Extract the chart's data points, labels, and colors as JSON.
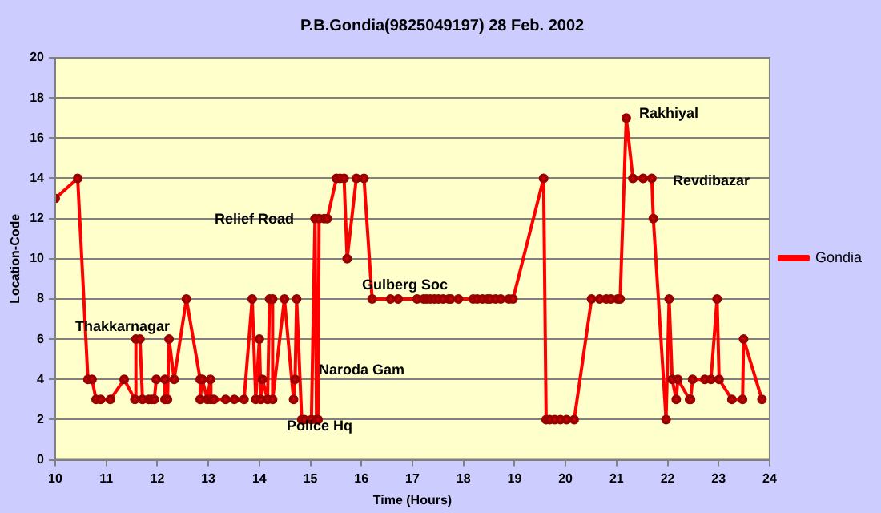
{
  "chart_data": {
    "type": "line",
    "title": "P.B.Gondia(9825049197) 28 Feb. 2002",
    "xlabel": "Time (Hours)",
    "ylabel": "Location-Code",
    "series": [
      {
        "name": "Gondia",
        "color": "#ff0000",
        "x": [
          10.0,
          10.44,
          10.64,
          10.72,
          10.8,
          10.89,
          11.08,
          11.35,
          11.56,
          11.58,
          11.66,
          11.71,
          11.83,
          11.89,
          11.94,
          11.98,
          12.15,
          12.15,
          12.2,
          12.23,
          12.33,
          12.57,
          12.84,
          12.84,
          12.88,
          12.98,
          13.04,
          13.05,
          13.11,
          13.34,
          13.51,
          13.7,
          13.86,
          13.93,
          14.0,
          14.03,
          14.06,
          14.16,
          14.2,
          14.26,
          14.26,
          14.49,
          14.67,
          14.7,
          14.73,
          14.83,
          14.88,
          15.02,
          15.09,
          15.12,
          15.15,
          15.17,
          15.27,
          15.33,
          15.51,
          15.58,
          15.66,
          15.72,
          15.9,
          16.05,
          16.21,
          16.57,
          16.72,
          17.09,
          17.22,
          17.28,
          17.35,
          17.43,
          17.51,
          17.6,
          17.71,
          17.75,
          17.9,
          18.19,
          18.27,
          18.37,
          18.47,
          18.52,
          18.63,
          18.73,
          18.89,
          18.97,
          19.57,
          19.62,
          19.69,
          19.79,
          19.9,
          20.02,
          20.17,
          20.51,
          20.67,
          20.8,
          20.89,
          21.02,
          21.07,
          21.19,
          21.32,
          21.52,
          21.69,
          21.72,
          21.97,
          22.03,
          22.09,
          22.17,
          22.2,
          22.43,
          22.45,
          22.49,
          22.73,
          22.85,
          22.97,
          23.01,
          23.26,
          23.47,
          23.49,
          23.85
        ],
        "values": [
          13,
          14,
          4,
          4,
          3,
          3,
          3,
          4,
          3,
          6,
          6,
          3,
          3,
          3,
          3,
          4,
          4,
          3,
          3,
          6,
          4,
          8,
          4,
          3,
          4,
          3,
          4,
          3,
          3,
          3,
          3,
          3,
          8,
          3,
          6,
          3,
          4,
          3,
          8,
          8,
          3,
          8,
          3,
          4,
          8,
          2,
          2,
          2,
          12,
          2,
          2,
          12,
          12,
          12,
          14,
          14,
          14,
          10,
          14,
          14,
          8,
          8,
          8,
          8,
          8,
          8,
          8,
          8,
          8,
          8,
          8,
          8,
          8,
          8,
          8,
          8,
          8,
          8,
          8,
          8,
          8,
          8,
          14,
          2,
          2,
          2,
          2,
          2,
          2,
          8,
          8,
          8,
          8,
          8,
          8,
          17,
          14,
          14,
          14,
          12,
          2,
          8,
          4,
          3,
          4,
          3,
          3,
          4,
          4,
          4,
          8,
          4,
          3,
          3,
          6,
          3
        ]
      }
    ],
    "xlim": [
      10,
      24
    ],
    "xticks": [
      10,
      11,
      12,
      13,
      14,
      15,
      16,
      17,
      18,
      19,
      20,
      21,
      22,
      23,
      24
    ],
    "ylim": [
      0,
      20
    ],
    "yticks": [
      0,
      2,
      4,
      6,
      8,
      10,
      12,
      14,
      16,
      18,
      20
    ],
    "grid": "y",
    "legend": "right",
    "marker": "circle",
    "line_style": "solid",
    "annotations": [
      "Thakkarnagar",
      "Relief Road",
      "Naroda Gam",
      "Police Hq",
      "Gulberg Soc",
      "Rakhiyal",
      "Revdibazar"
    ]
  }
}
